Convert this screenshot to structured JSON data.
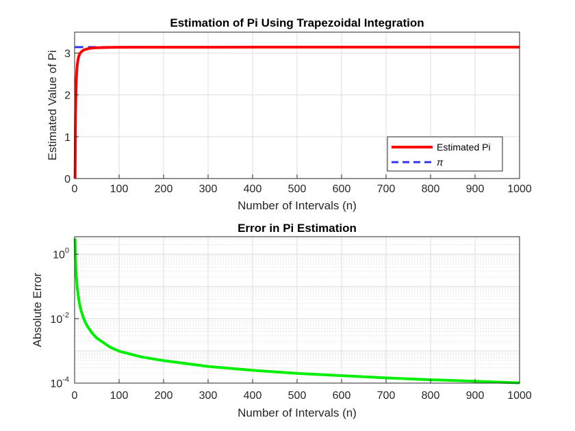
{
  "chart_data": [
    {
      "type": "line",
      "title": "Estimation of Pi Using Trapezoidal Integration",
      "xlabel": "Number of Intervals (n)",
      "ylabel": "Estimated Value of Pi",
      "xlim": [
        0,
        1000
      ],
      "ylim": [
        0,
        3.5
      ],
      "xticks": [
        0,
        100,
        200,
        300,
        400,
        500,
        600,
        700,
        800,
        900,
        1000
      ],
      "yticks": [
        0,
        1,
        2,
        3
      ],
      "grid": true,
      "legend_location": "bottom-right",
      "series": [
        {
          "name": "Estimated Pi",
          "color": "#ff0000",
          "style": "solid",
          "x": [
            1,
            2,
            3,
            4,
            5,
            6,
            8,
            10,
            12,
            15,
            20,
            25,
            30,
            40,
            50,
            60,
            80,
            100,
            150,
            200,
            300,
            400,
            500,
            600,
            700,
            800,
            900,
            1000
          ],
          "y": [
            0,
            1.5,
            2.1,
            2.4,
            2.6,
            2.72,
            2.86,
            2.94,
            2.99,
            3.03,
            3.07,
            3.09,
            3.105,
            3.12,
            3.127,
            3.131,
            3.135,
            3.138,
            3.1395,
            3.1403,
            3.1409,
            3.1411,
            3.1412,
            3.1413,
            3.1414,
            3.1414,
            3.1415,
            3.1415
          ]
        },
        {
          "name": "π",
          "color": "#3333ee",
          "style": "dashed",
          "x": [
            1,
            1000
          ],
          "y": [
            3.14159,
            3.14159
          ]
        }
      ]
    },
    {
      "type": "line",
      "title": "Error in Pi Estimation",
      "xlabel": "Number of Intervals (n)",
      "ylabel": "Absolute Error",
      "xlim": [
        0,
        1000
      ],
      "ylim": [
        0.0001,
        3.5
      ],
      "yscale": "log",
      "xticks": [
        0,
        100,
        200,
        300,
        400,
        500,
        600,
        700,
        800,
        900,
        1000
      ],
      "yticks": [
        {
          "base": "10",
          "exp": "-4"
        },
        {
          "base": "10",
          "exp": "-2"
        },
        {
          "base": "10",
          "exp": "0"
        }
      ],
      "grid": true,
      "series": [
        {
          "color": "#00ee00",
          "style": "solid",
          "x": [
            1,
            2,
            3,
            4,
            5,
            6,
            8,
            10,
            12,
            15,
            20,
            25,
            30,
            40,
            50,
            60,
            80,
            100,
            150,
            200,
            300,
            400,
            500,
            600,
            700,
            800,
            900,
            1000
          ],
          "y": [
            3.1,
            0.7,
            0.32,
            0.2,
            0.13,
            0.09,
            0.055,
            0.035,
            0.025,
            0.017,
            0.0105,
            0.0072,
            0.0055,
            0.0035,
            0.0025,
            0.002,
            0.0013,
            0.00098,
            0.00065,
            0.0005,
            0.00033,
            0.00025,
            0.0002,
            0.00017,
            0.000145,
            0.000127,
            0.000114,
            0.000102
          ]
        }
      ]
    }
  ]
}
